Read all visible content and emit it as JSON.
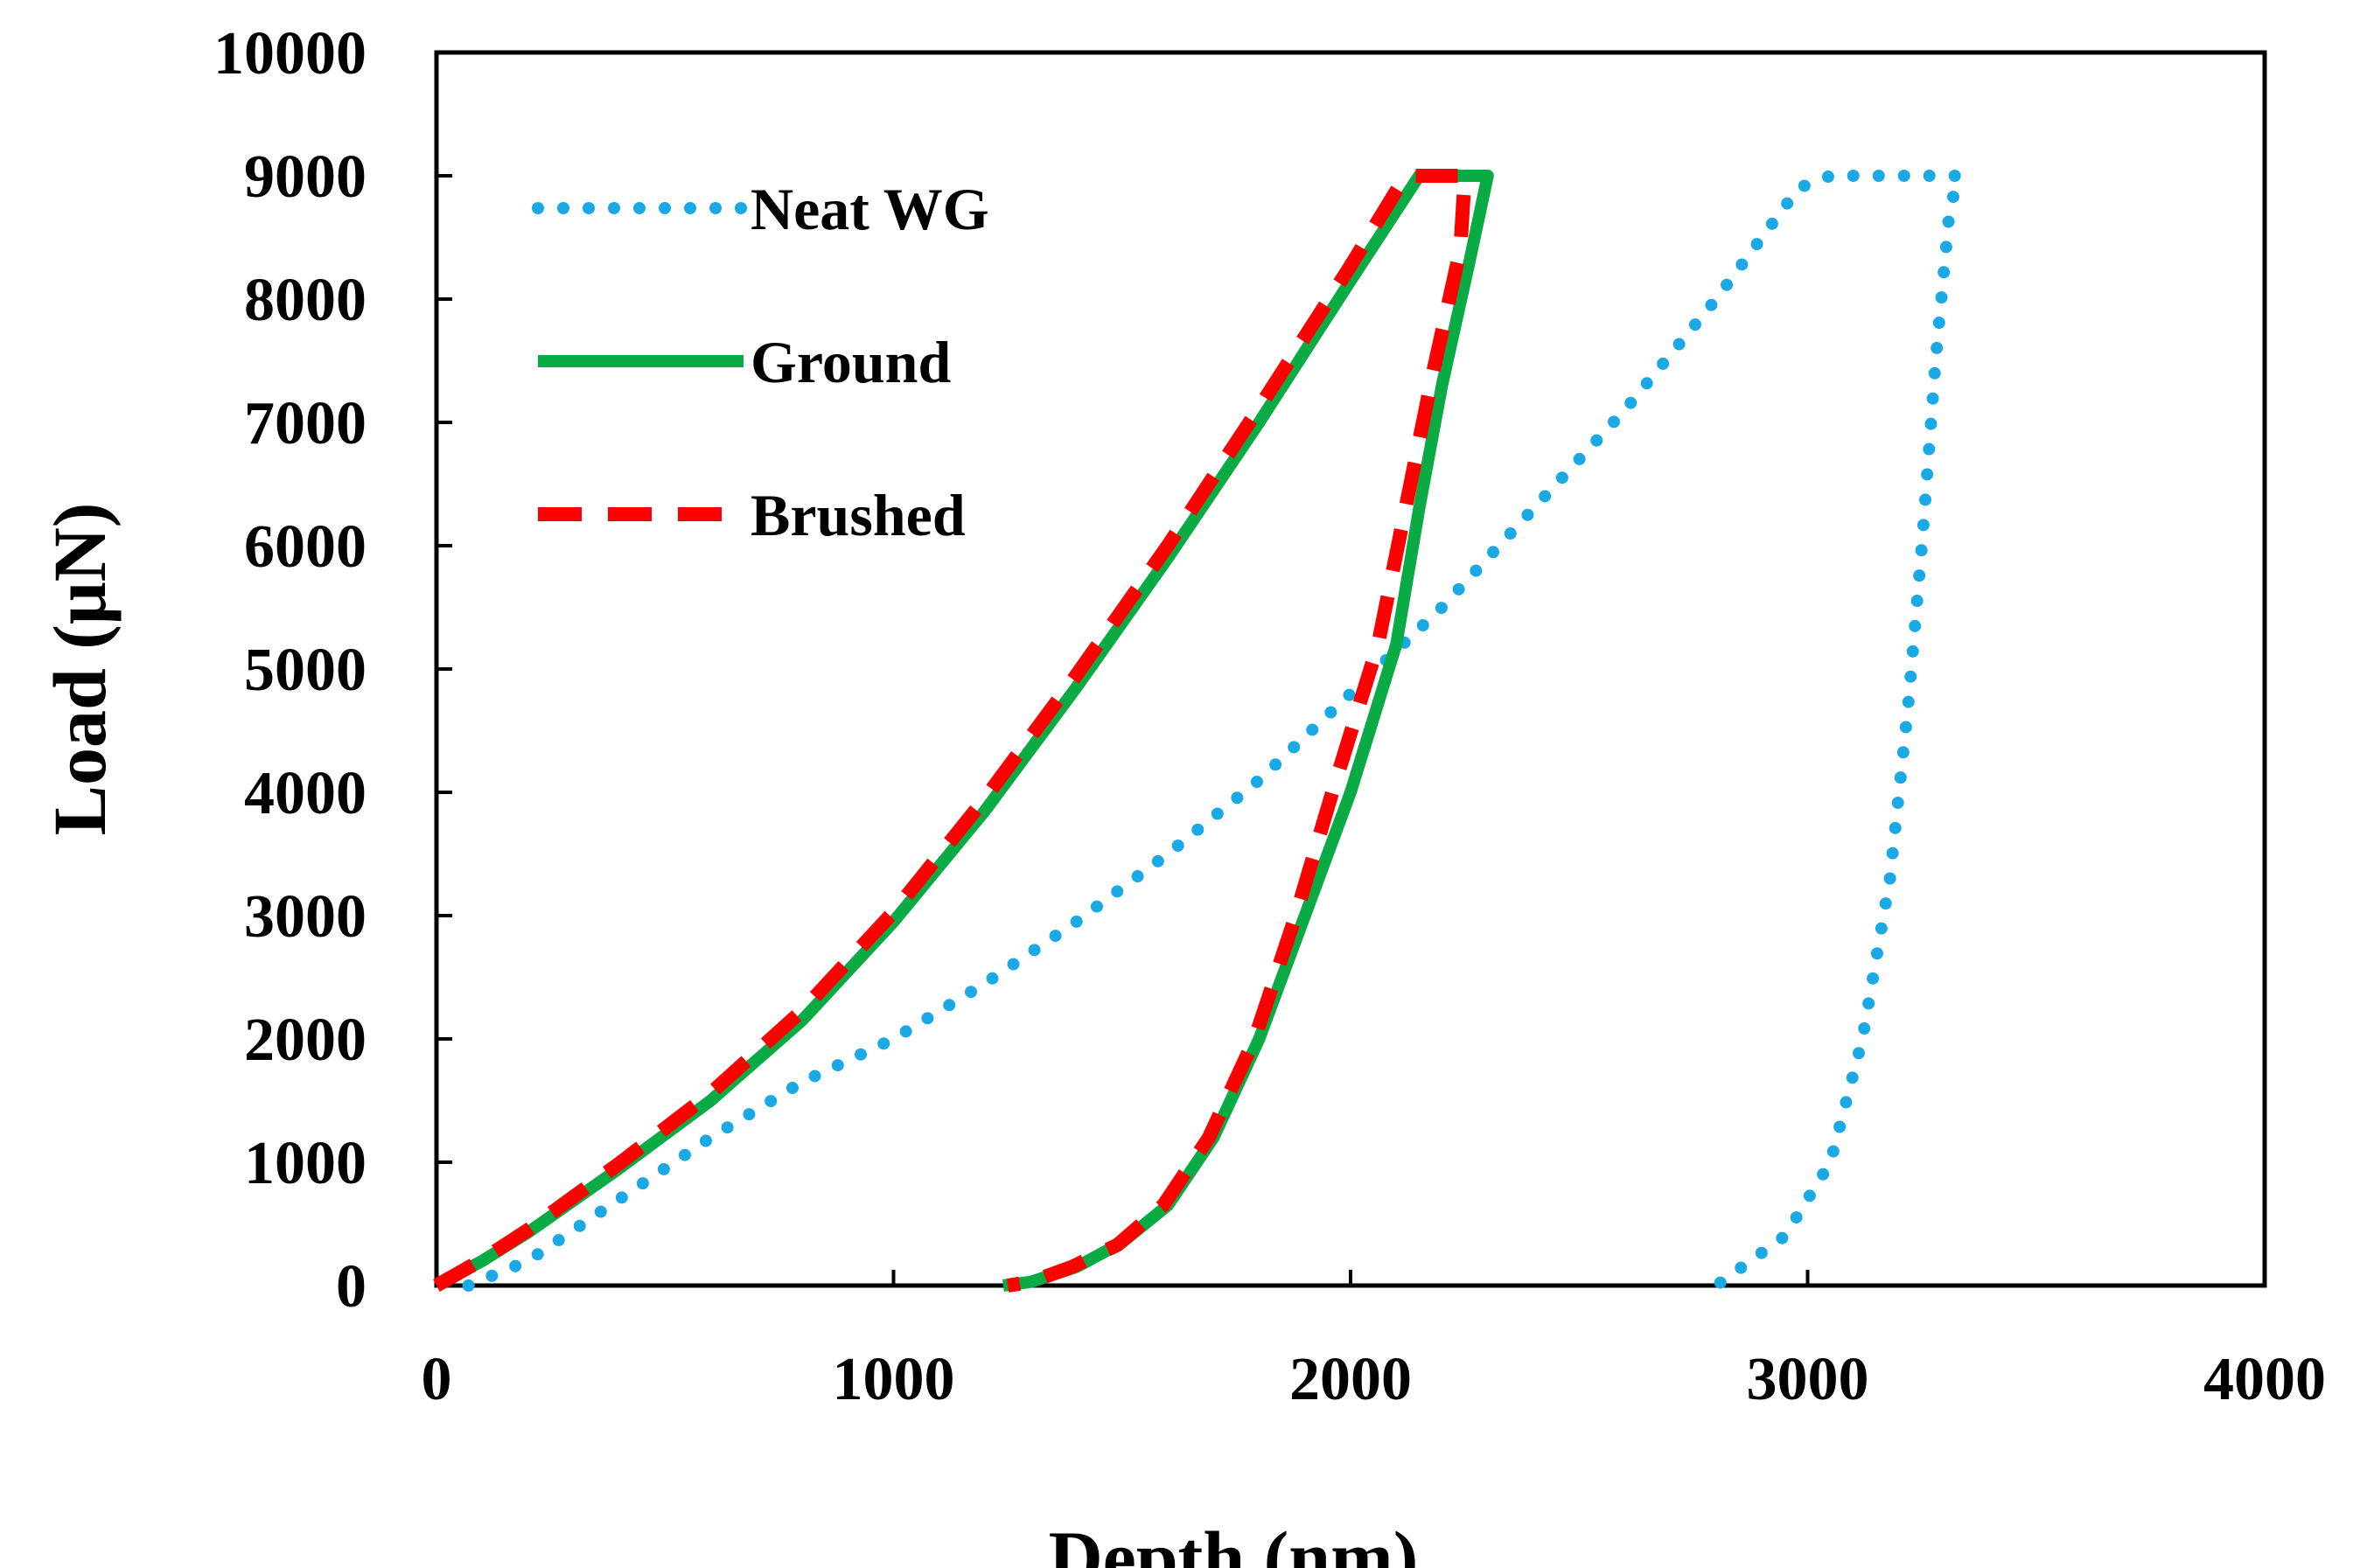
{
  "chart_data": {
    "type": "line",
    "title": "",
    "xlabel": "Depth (nm)",
    "ylabel": "Load (μN)",
    "xlim": [
      0,
      4000
    ],
    "ylim": [
      0,
      10000
    ],
    "xticks": [
      0,
      1000,
      2000,
      3000,
      4000
    ],
    "yticks": [
      0,
      1000,
      2000,
      3000,
      4000,
      5000,
      6000,
      7000,
      8000,
      9000,
      10000
    ],
    "xtick_labels": [
      "0",
      "1000",
      "2000",
      "3000",
      "4000"
    ],
    "ytick_labels": [
      "0",
      "1000",
      "2000",
      "3000",
      "4000",
      "5000",
      "6000",
      "7000",
      "8000",
      "9000",
      "10000"
    ],
    "grid": false,
    "legend_position": "top-left",
    "series": [
      {
        "name": "Neat WG",
        "style": "dotted",
        "color": "#1ba9e6",
        "points": [
          [
            70,
            0
          ],
          [
            200,
            200
          ],
          [
            400,
            700
          ],
          [
            600,
            1200
          ],
          [
            800,
            1650
          ],
          [
            1000,
            2000
          ],
          [
            1200,
            2450
          ],
          [
            1400,
            2950
          ],
          [
            1600,
            3500
          ],
          [
            1800,
            4100
          ],
          [
            2000,
            4800
          ],
          [
            2200,
            5500
          ],
          [
            2400,
            6300
          ],
          [
            2600,
            7100
          ],
          [
            2800,
            8000
          ],
          [
            2980,
            8900
          ],
          [
            3050,
            9000
          ],
          [
            3330,
            9000
          ],
          [
            3310,
            8700
          ],
          [
            3280,
            7500
          ],
          [
            3250,
            6000
          ],
          [
            3220,
            4700
          ],
          [
            3180,
            3300
          ],
          [
            3120,
            2000
          ],
          [
            3050,
            1000
          ],
          [
            2950,
            400
          ],
          [
            2800,
            0
          ]
        ]
      },
      {
        "name": "Ground",
        "style": "solid",
        "color": "#0aab44",
        "points": [
          [
            0,
            0
          ],
          [
            100,
            200
          ],
          [
            200,
            430
          ],
          [
            400,
            950
          ],
          [
            600,
            1500
          ],
          [
            800,
            2150
          ],
          [
            1000,
            2950
          ],
          [
            1200,
            3850
          ],
          [
            1400,
            4850
          ],
          [
            1600,
            5900
          ],
          [
            1800,
            7000
          ],
          [
            2000,
            8150
          ],
          [
            2150,
            9000
          ],
          [
            2300,
            9000
          ],
          [
            2260,
            8300
          ],
          [
            2200,
            7300
          ],
          [
            2150,
            6300
          ],
          [
            2100,
            5200
          ],
          [
            2000,
            4000
          ],
          [
            1900,
            3000
          ],
          [
            1800,
            2000
          ],
          [
            1700,
            1200
          ],
          [
            1600,
            650
          ],
          [
            1500,
            350
          ],
          [
            1400,
            150
          ],
          [
            1300,
            30
          ],
          [
            1240,
            0
          ]
        ]
      },
      {
        "name": "Brushed",
        "style": "dashed",
        "color": "#ff0000",
        "points": [
          [
            0,
            0
          ],
          [
            100,
            210
          ],
          [
            200,
            450
          ],
          [
            400,
            990
          ],
          [
            600,
            1560
          ],
          [
            800,
            2230
          ],
          [
            1000,
            3030
          ],
          [
            1200,
            3950
          ],
          [
            1400,
            4950
          ],
          [
            1600,
            6000
          ],
          [
            1800,
            7120
          ],
          [
            2000,
            8270
          ],
          [
            2120,
            9000
          ],
          [
            2250,
            9000
          ],
          [
            2240,
            8400
          ],
          [
            2180,
            7400
          ],
          [
            2120,
            6300
          ],
          [
            2060,
            5200
          ],
          [
            1960,
            4000
          ],
          [
            1880,
            3000
          ],
          [
            1790,
            2000
          ],
          [
            1690,
            1200
          ],
          [
            1590,
            650
          ],
          [
            1490,
            330
          ],
          [
            1390,
            150
          ],
          [
            1300,
            30
          ],
          [
            1250,
            0
          ]
        ]
      }
    ]
  }
}
